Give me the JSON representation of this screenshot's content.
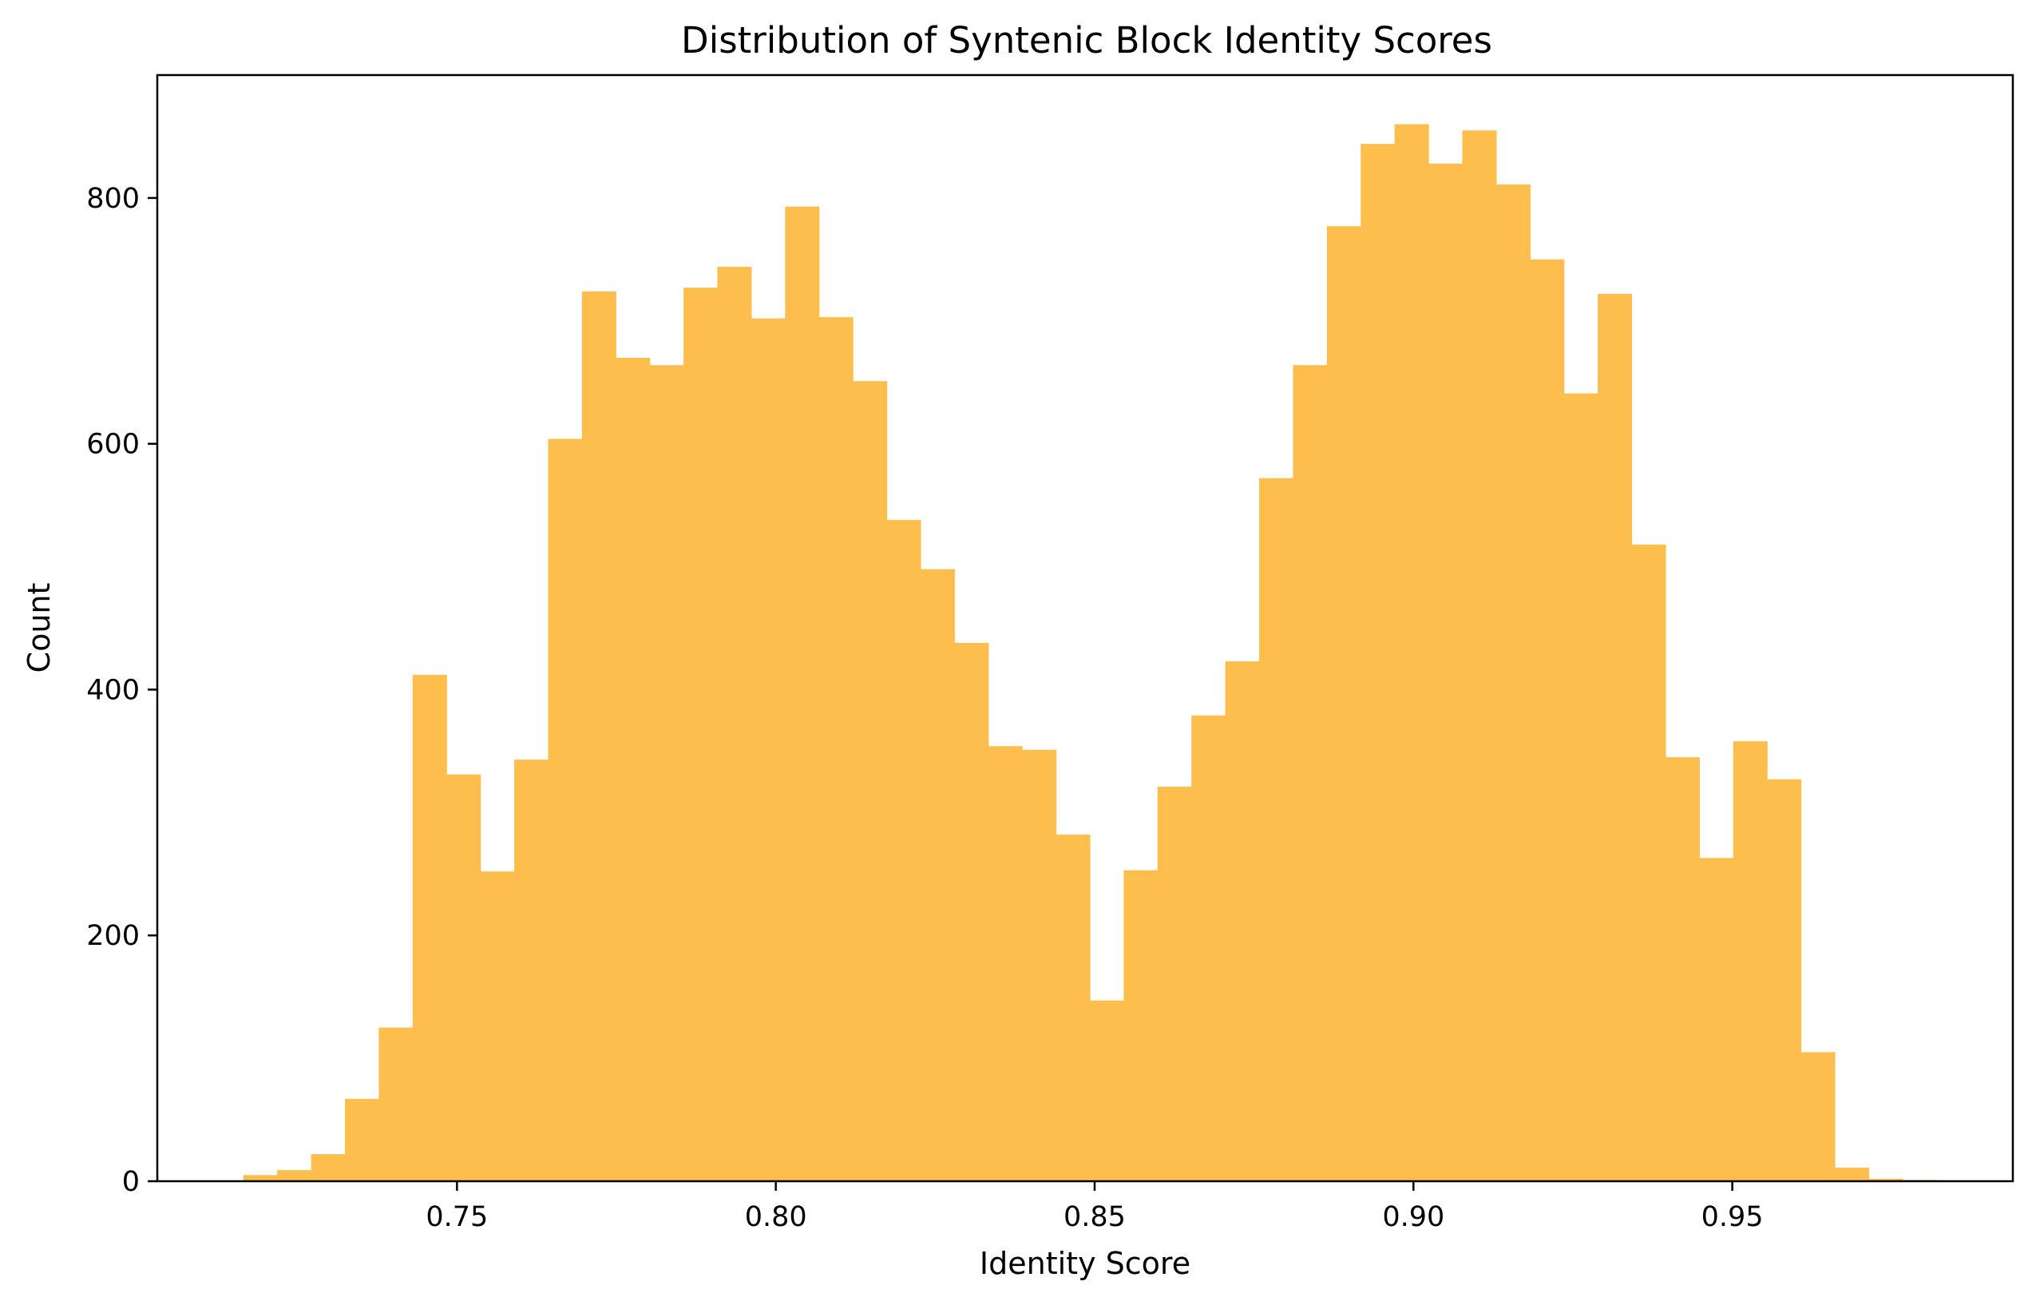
{
  "chart_data": {
    "type": "bar",
    "subtype": "histogram",
    "title": "Distribution of Syntenic Block Identity Scores",
    "xlabel": "Identity Score",
    "ylabel": "Count",
    "xlim": [
      0.703,
      0.994
    ],
    "ylim": [
      0,
      900
    ],
    "xticks": [
      0.75,
      0.8,
      0.85,
      0.9,
      0.95
    ],
    "xtick_labels": [
      "0.75",
      "0.80",
      "0.85",
      "0.90",
      "0.95"
    ],
    "yticks": [
      0,
      200,
      400,
      600,
      800
    ],
    "ytick_labels": [
      "0",
      "200",
      "400",
      "600",
      "800"
    ],
    "grid": false,
    "legend": null,
    "bar_color": "#fdbe4e",
    "bins": {
      "start": 0.7165,
      "width": 0.00531,
      "counts": [
        5,
        9,
        22,
        67,
        125,
        412,
        331,
        252,
        343,
        604,
        724,
        670,
        664,
        727,
        744,
        702,
        793,
        703,
        651,
        538,
        498,
        438,
        354,
        351,
        282,
        147,
        253,
        321,
        379,
        423,
        572,
        664,
        777,
        844,
        860,
        828,
        855,
        811,
        750,
        641,
        722,
        518,
        345,
        263,
        358,
        327,
        105,
        11,
        2,
        1
      ]
    }
  }
}
